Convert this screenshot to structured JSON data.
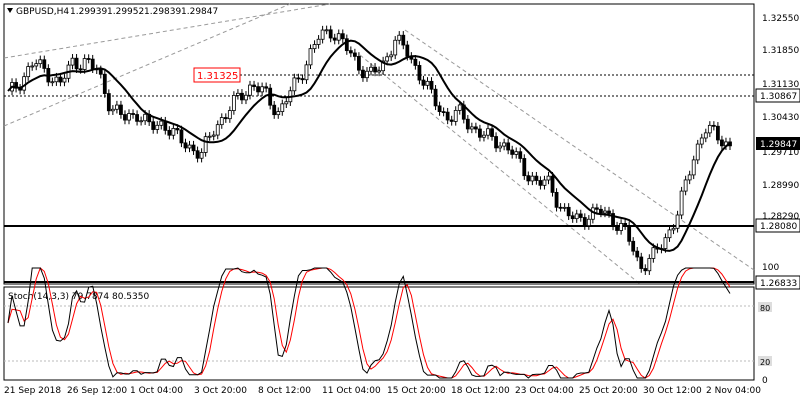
{
  "header": {
    "symbol": "GBPUSD,H4",
    "open": "1.29939",
    "high": "1.29952",
    "low": "1.29839",
    "close": "1.29847"
  },
  "price_axis": {
    "ticks": [
      "1.32550",
      "1.31850",
      "1.31130",
      "1.30430",
      "1.29710",
      "1.28990",
      "1.28290"
    ]
  },
  "markers": {
    "resistance_label": "1.31325",
    "current_price": "1.29847",
    "level_1": "1.30867",
    "level_2": "1.28080",
    "level_3": "1.26833"
  },
  "stochastic": {
    "label": "Stoch(14,3,3) 79.7874 80.5350",
    "levels": [
      "100",
      "80",
      "20",
      "0"
    ]
  },
  "time_axis": {
    "labels": [
      "21 Sep 2018",
      "26 Sep 12:00",
      "1 Oct 04:00",
      "3 Oct 20:00",
      "8 Oct 12:00",
      "11 Oct 04:00",
      "15 Oct 20:00",
      "18 Oct 12:00",
      "23 Oct 04:00",
      "25 Oct 20:00",
      "30 Oct 12:00",
      "2 Nov 04:00"
    ]
  },
  "colors": {
    "up_candle": "#000000",
    "down_candle": "#000000",
    "moving_average": "#000000",
    "stoch_main": "#000000",
    "stoch_signal": "#ff0000",
    "resistance_label_border": "#ff0000",
    "channel": "#9a9a9a"
  },
  "chart_data": {
    "type": "candlestick",
    "timeframe": "H4",
    "close_path": [
      [
        "21 Sep 2018",
        1.309
      ],
      [
        "",
        1.312
      ],
      [
        "",
        1.316
      ],
      [
        "",
        1.314
      ],
      [
        "",
        1.311
      ],
      [
        "26 Sep 12:00",
        1.316
      ],
      [
        "",
        1.316
      ],
      [
        "",
        1.314
      ],
      [
        "",
        1.306
      ],
      [
        "",
        1.304
      ],
      [
        "1 Oct 04:00",
        1.305
      ],
      [
        "",
        1.302
      ],
      [
        "",
        1.303
      ],
      [
        "",
        1.3
      ],
      [
        "",
        1.298
      ],
      [
        "3 Oct 20:00",
        1.296
      ],
      [
        "",
        1.302
      ],
      [
        "",
        1.305
      ],
      [
        "",
        1.309
      ],
      [
        "",
        1.311
      ],
      [
        "8 Oct 12:00",
        1.309
      ],
      [
        "",
        1.305
      ],
      [
        "",
        1.31
      ],
      [
        "",
        1.315
      ],
      [
        "",
        1.321
      ],
      [
        "11 Oct 04:00",
        1.323
      ],
      [
        "",
        1.32
      ],
      [
        "",
        1.316
      ],
      [
        "",
        1.313
      ],
      [
        "",
        1.315
      ],
      [
        "15 Oct 20:00",
        1.321
      ],
      [
        "",
        1.318
      ],
      [
        "",
        1.313
      ],
      [
        "",
        1.308
      ],
      [
        "",
        1.304
      ],
      [
        "18 Oct 12:00",
        1.305
      ],
      [
        "",
        1.302
      ],
      [
        "",
        1.3
      ],
      [
        "",
        1.299
      ],
      [
        "",
        1.297
      ],
      [
        "23 Oct 04:00",
        1.293
      ],
      [
        "",
        1.29
      ],
      [
        "",
        1.29
      ],
      [
        "",
        1.284
      ],
      [
        "",
        1.282
      ],
      [
        "25 Oct 20:00",
        1.283
      ],
      [
        "",
        1.284
      ],
      [
        "",
        1.282
      ],
      [
        "",
        1.279
      ],
      [
        "",
        1.272
      ],
      [
        "30 Oct 12:00",
        1.274
      ],
      [
        "",
        1.278
      ],
      [
        "",
        1.284
      ],
      [
        "",
        1.294
      ],
      [
        "",
        1.302
      ],
      [
        "2 Nov 04:00",
        1.3
      ],
      [
        "",
        1.298
      ]
    ]
  }
}
